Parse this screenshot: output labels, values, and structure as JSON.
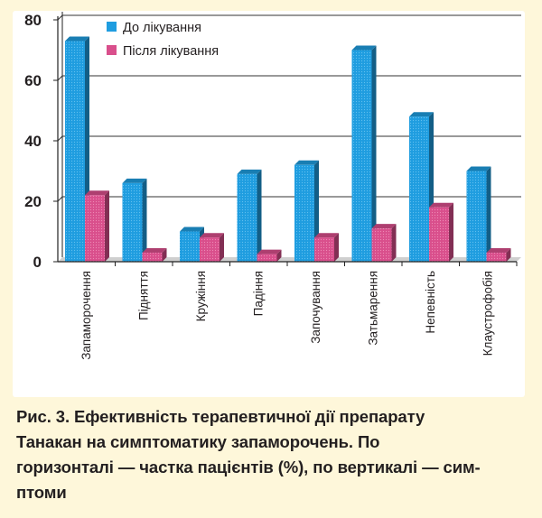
{
  "chart_data": {
    "type": "bar",
    "title": "",
    "xlabel": "",
    "ylabel": "",
    "ylim": [
      0,
      80
    ],
    "yticks": [
      0,
      20,
      40,
      60,
      80
    ],
    "grid": true,
    "legend_position": "top-right",
    "categories": [
      "Запаморочення",
      "Підняття",
      "Кружіння",
      "Падіння",
      "Започування",
      "Затьмарення",
      "Непевність",
      "Клаустрофобія"
    ],
    "series": [
      {
        "name": "До лікування",
        "color": "#1f9de0",
        "values": [
          73,
          26,
          10,
          29,
          32,
          70,
          48,
          30
        ]
      },
      {
        "name": "Після лікування",
        "color": "#d94f8c",
        "values": [
          22,
          3,
          8,
          2.5,
          8,
          11,
          18,
          3
        ]
      }
    ]
  },
  "caption": {
    "text": "Рис. 3. Ефективність терапевтичної дії препарату Танакан на симптоматику запаморочень. По горизонталі — частка пацієнтів (%), по вертикалі — сим-птоми",
    "lines": [
      "Рис. 3. Ефективність терапевтичної дії препарату",
      "Танакан на симптоматику запаморочень. По",
      "горизонталі — частка пацієнтів (%), по вертикалі — сим-",
      "птоми"
    ]
  }
}
